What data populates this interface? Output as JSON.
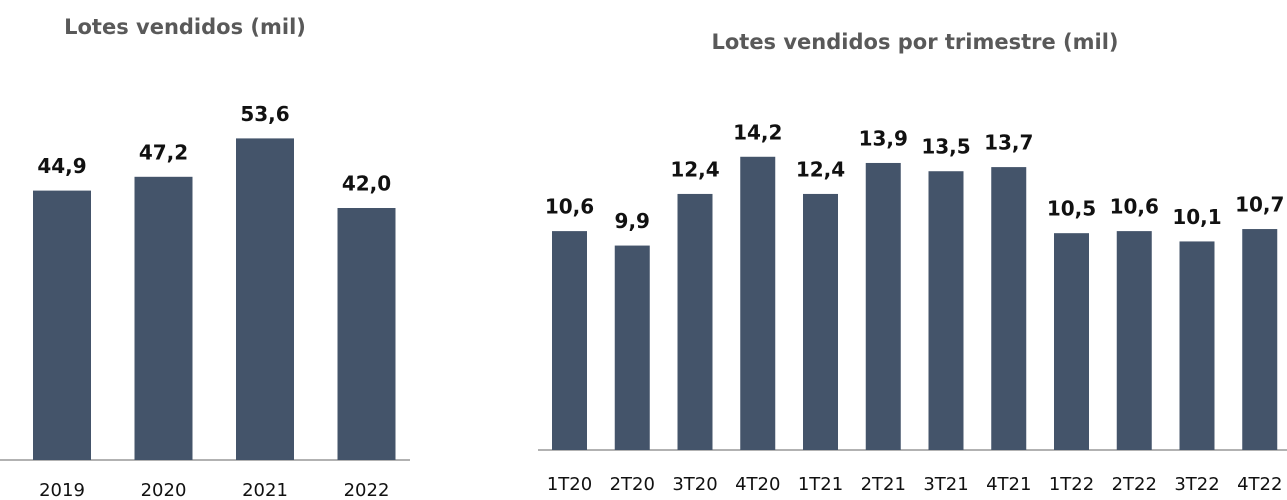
{
  "chart_data": [
    {
      "type": "bar",
      "title": "Lotes vendidos (mil)",
      "categories": [
        "2019",
        "2020",
        "2021",
        "2022"
      ],
      "values": [
        44.9,
        47.2,
        53.6,
        42.0
      ],
      "value_labels": [
        "44,9",
        "47,2",
        "53,6",
        "42,0"
      ],
      "color": "#44546a",
      "ylim": [
        0,
        60
      ]
    },
    {
      "type": "bar",
      "title": "Lotes vendidos por trimestre (mil)",
      "categories": [
        "1T20",
        "2T20",
        "3T20",
        "4T20",
        "1T21",
        "2T21",
        "3T21",
        "4T21",
        "1T22",
        "2T22",
        "3T22",
        "4T22"
      ],
      "values": [
        10.6,
        9.9,
        12.4,
        14.2,
        12.4,
        13.9,
        13.5,
        13.7,
        10.5,
        10.6,
        10.1,
        10.7
      ],
      "value_labels": [
        "10,6",
        "9,9",
        "12,4",
        "14,2",
        "12,4",
        "13,9",
        "13,5",
        "13,7",
        "10,5",
        "10,6",
        "10,1",
        "10,7"
      ],
      "color": "#44546a",
      "ylim": [
        0,
        20
      ]
    }
  ]
}
